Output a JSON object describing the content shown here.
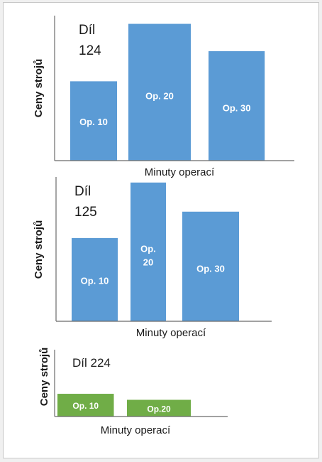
{
  "chart_data": [
    {
      "type": "bar",
      "title": "Díl 124",
      "title_lines": [
        "Díl",
        "124"
      ],
      "xlabel": "Minuty operací",
      "ylabel": "Ceny strojů",
      "bars": [
        {
          "label": "Op. 10",
          "lines": [
            "Op. 10"
          ],
          "value": 0.58,
          "width_value": 0.6
        },
        {
          "label": "Op. 20",
          "lines": [
            "Op. 20"
          ],
          "value": 1.0,
          "width_value": 0.8
        },
        {
          "label": "Op. 30",
          "lines": [
            "Op. 30"
          ],
          "value": 0.8,
          "width_value": 0.72
        }
      ],
      "ylim": [
        0,
        1.06
      ],
      "bar_color": "#5b9bd5",
      "axis_color": "#6b6b6b"
    },
    {
      "type": "bar",
      "title": "Díl 125",
      "title_lines": [
        "Díl",
        "125"
      ],
      "xlabel": "Minuty operací",
      "ylabel": "Ceny strojů",
      "bars": [
        {
          "label": "Op. 10",
          "lines": [
            "Op. 10"
          ],
          "value": 0.6,
          "width_value": 0.65
        },
        {
          "label": "Op. 20",
          "lines": [
            "Op.",
            "20"
          ],
          "value": 1.0,
          "width_value": 0.5
        },
        {
          "label": "Op. 30",
          "lines": [
            "Op. 30"
          ],
          "value": 0.79,
          "width_value": 0.8
        }
      ],
      "ylim": [
        0,
        1.04
      ],
      "bar_color": "#5b9bd5",
      "axis_color": "#6b6b6b"
    },
    {
      "type": "bar",
      "title": "Díl 224",
      "title_lines": [
        "Díl 224"
      ],
      "xlabel": "Minuty operací",
      "ylabel": "Ceny strojů",
      "bars": [
        {
          "label": "Op. 10",
          "lines": [
            "Op. 10"
          ],
          "value": 0.34,
          "width_value": 0.75
        },
        {
          "label": "Op.20",
          "lines": [
            "Op.20"
          ],
          "value": 0.25,
          "width_value": 0.85
        }
      ],
      "ylim": [
        0,
        1.0
      ],
      "bar_color": "#70ad47",
      "axis_color": "#6b6b6b"
    }
  ]
}
